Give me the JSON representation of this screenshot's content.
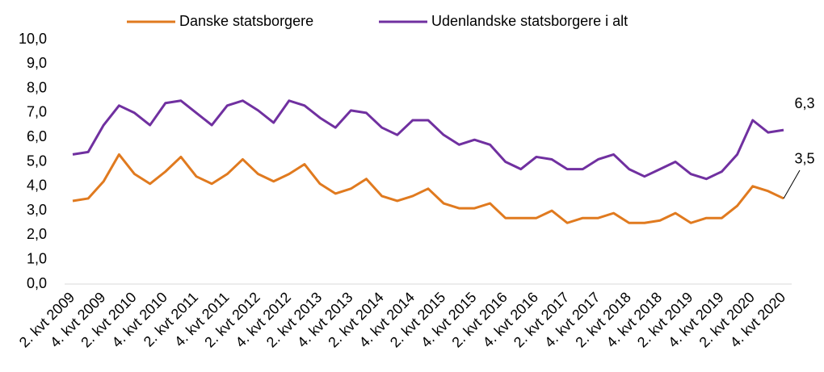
{
  "chart_data": {
    "type": "line",
    "categories": [
      "2. kvt 2009",
      null,
      "4. kvt 2009",
      null,
      "2. kvt 2010",
      null,
      "4. kvt 2010",
      null,
      "2. kvt 2011",
      null,
      "4. kvt 2011",
      null,
      "2. kvt 2012",
      null,
      "4. kvt 2012",
      null,
      "2. kvt 2013",
      null,
      "4. kvt 2013",
      null,
      "2. kvt 2014",
      null,
      "4. kvt 2014",
      null,
      "2. kvt 2015",
      null,
      "4. kvt 2015",
      null,
      "2. kvt 2016",
      null,
      "4. kvt 2016",
      null,
      "2. kvt 2017",
      null,
      "4. kvt 2017",
      null,
      "2. kvt 2018",
      null,
      "4. kvt 2018",
      null,
      "2. kvt 2019",
      null,
      "4. kvt 2019",
      null,
      "2. kvt 2020",
      null,
      "4. kvt 2020"
    ],
    "series": [
      {
        "name": "Danske statsborgere",
        "color": "#e07a1f",
        "values": [
          3.4,
          3.5,
          4.2,
          5.3,
          4.5,
          4.1,
          4.6,
          5.2,
          4.4,
          4.1,
          4.5,
          5.1,
          4.5,
          4.2,
          4.5,
          4.9,
          4.1,
          3.7,
          3.9,
          4.3,
          3.6,
          3.4,
          3.6,
          3.9,
          3.3,
          3.1,
          3.1,
          3.3,
          2.7,
          2.7,
          2.7,
          3.0,
          2.5,
          2.7,
          2.7,
          2.9,
          2.5,
          2.5,
          2.6,
          2.9,
          2.5,
          2.7,
          2.7,
          3.2,
          4.0,
          3.8,
          3.5
        ],
        "value_labels": [
          null,
          null,
          null,
          null,
          null,
          null,
          null,
          null,
          null,
          null,
          null,
          null,
          null,
          null,
          null,
          null,
          null,
          null,
          null,
          null,
          null,
          null,
          null,
          null,
          null,
          null,
          null,
          null,
          null,
          null,
          null,
          null,
          null,
          null,
          null,
          null,
          null,
          null,
          null,
          null,
          null,
          null,
          null,
          null,
          null,
          null,
          "3,5"
        ]
      },
      {
        "name": "Udenlandske statsborgere i alt",
        "color": "#7030a0",
        "values": [
          5.3,
          5.4,
          6.5,
          7.3,
          7.0,
          6.5,
          7.4,
          7.5,
          7.0,
          6.5,
          7.3,
          7.5,
          7.1,
          6.6,
          7.5,
          7.3,
          6.8,
          6.4,
          7.1,
          7.0,
          6.4,
          6.1,
          6.7,
          6.7,
          6.1,
          5.7,
          5.9,
          5.7,
          5.0,
          4.7,
          5.2,
          5.1,
          4.7,
          4.7,
          5.1,
          5.3,
          4.7,
          4.4,
          4.7,
          5.0,
          4.5,
          4.3,
          4.6,
          5.3,
          6.7,
          6.2,
          6.3
        ],
        "value_labels": [
          null,
          null,
          null,
          null,
          null,
          null,
          null,
          null,
          null,
          null,
          null,
          null,
          null,
          null,
          null,
          null,
          null,
          null,
          null,
          null,
          null,
          null,
          null,
          null,
          null,
          null,
          null,
          null,
          null,
          null,
          null,
          null,
          null,
          null,
          null,
          null,
          null,
          null,
          null,
          null,
          null,
          null,
          null,
          null,
          null,
          null,
          "6,3"
        ]
      }
    ],
    "ylim": [
      0,
      10
    ],
    "yticks": [
      {
        "value": 0,
        "label": "0,0"
      },
      {
        "value": 1,
        "label": "1,0"
      },
      {
        "value": 2,
        "label": "2,0"
      },
      {
        "value": 3,
        "label": "3,0"
      },
      {
        "value": 4,
        "label": "4,0"
      },
      {
        "value": 5,
        "label": "5,0"
      },
      {
        "value": 6,
        "label": "6,0"
      },
      {
        "value": 7,
        "label": "7,0"
      },
      {
        "value": 8,
        "label": "8,0"
      },
      {
        "value": 9,
        "label": "9,0"
      },
      {
        "value": 10,
        "label": "10,0"
      }
    ],
    "grid": false,
    "legend": "top"
  }
}
